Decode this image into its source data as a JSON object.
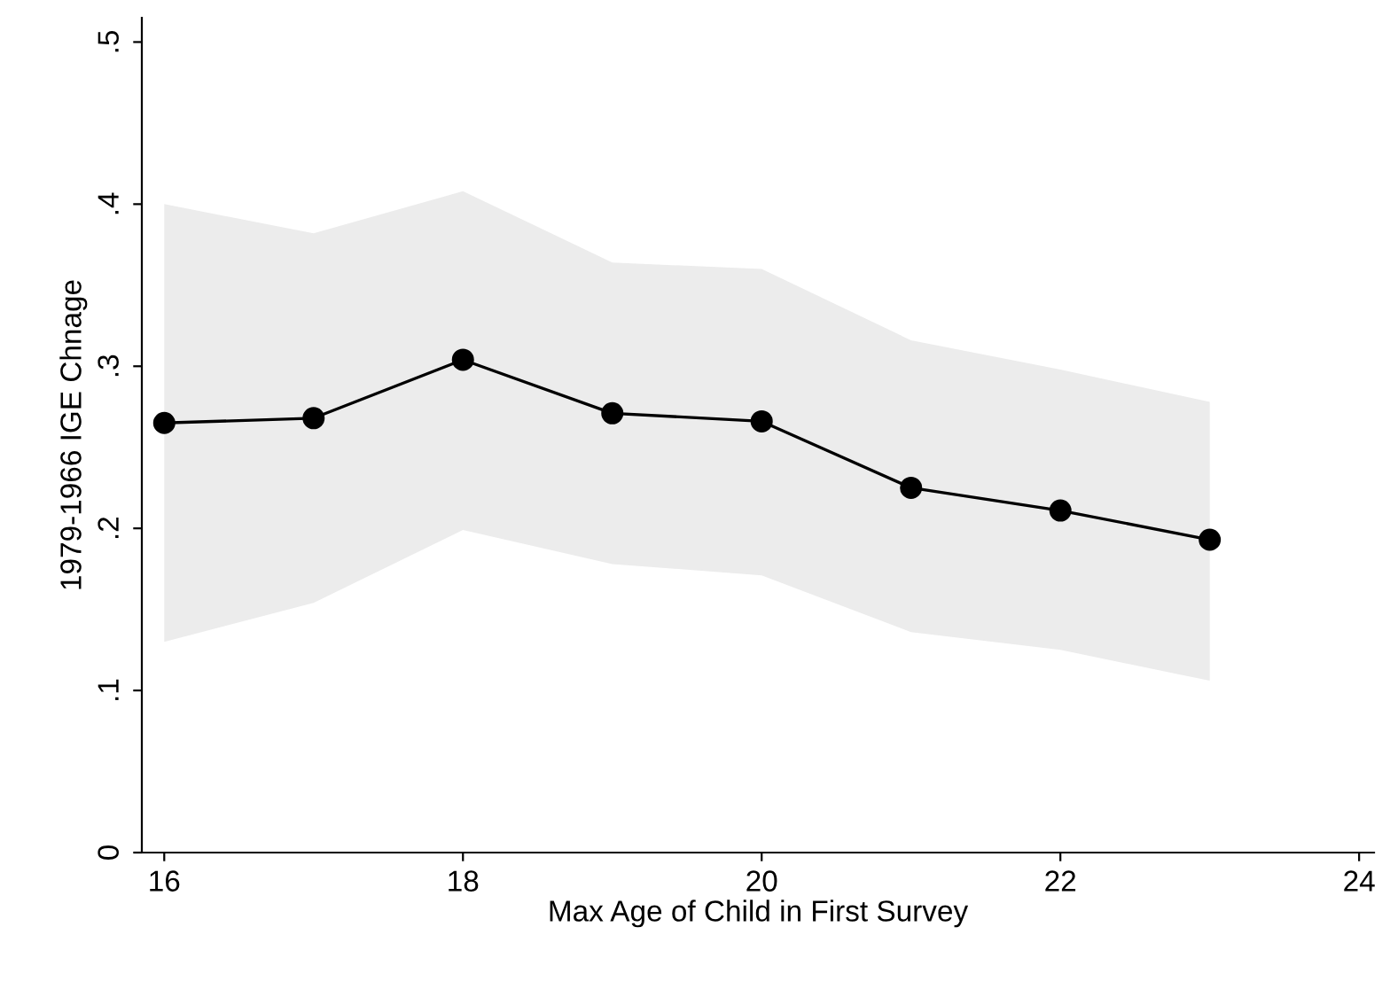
{
  "chart_data": {
    "type": "line",
    "xlabel": "Max Age of Child in First Survey",
    "ylabel": "1979-1966 IGE Chnage",
    "x": [
      16,
      17,
      18,
      19,
      20,
      21,
      22,
      23
    ],
    "series": [
      {
        "color": "#000000",
        "values": [
          0.265,
          0.268,
          0.304,
          0.271,
          0.266,
          0.225,
          0.211,
          0.193
        ],
        "lower": [
          0.13,
          0.154,
          0.199,
          0.178,
          0.171,
          0.136,
          0.125,
          0.106
        ],
        "upper": [
          0.4,
          0.382,
          0.408,
          0.364,
          0.36,
          0.316,
          0.298,
          0.278
        ]
      }
    ],
    "xlim": [
      15.85,
      24.1
    ],
    "xticks": [
      16,
      18,
      20,
      22,
      24
    ],
    "ylim": [
      0,
      0.515
    ],
    "yticks": [
      {
        "value": 0,
        "label": "0"
      },
      {
        "value": 0.1,
        "label": ".1"
      },
      {
        "value": 0.2,
        "label": ".2"
      },
      {
        "value": 0.3,
        "label": ".3"
      },
      {
        "value": 0.4,
        "label": ".4"
      },
      {
        "value": 0.5,
        "label": ".5"
      }
    ],
    "marker": "circle",
    "line_style": "solid",
    "grid": false,
    "legend": false
  }
}
